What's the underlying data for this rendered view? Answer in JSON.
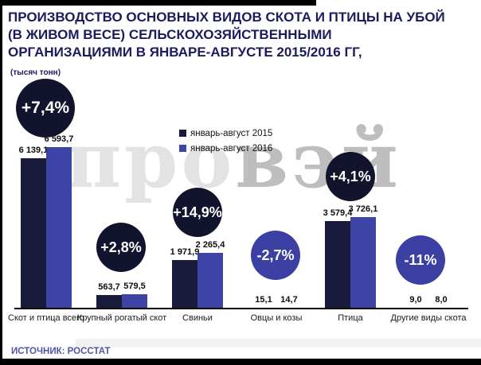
{
  "header": {
    "title_lines": [
      "ПРОИЗВОДСТВО ОСНОВНЫХ ВИДОВ СКОТА И ПТИЦЫ НА УБОЙ",
      "(В ЖИВОМ ВЕСЕ)  СЕЛЬСКОХОЗЯЙСТВЕННЫМИ",
      "ОРГАНИЗАЦИЯМИ В ЯНВАРЕ-АВГУСТЕ 2015/2016 ГГ,"
    ],
    "units_label": "(тысяч тонн)"
  },
  "legend": {
    "items": [
      {
        "label": "январь-август 2015",
        "color": "#191b3c"
      },
      {
        "label": "январь-август 2016",
        "color": "#3e43a6"
      }
    ]
  },
  "watermark": {
    "light_part": "про",
    "dark_part": "вэй"
  },
  "footer": {
    "source": "ИСТОЧНИК: РОССТАТ"
  },
  "colors": {
    "series_2015": "#191b3c",
    "series_2016": "#3e43a6",
    "badge_positive": "#12142e",
    "badge_negative": "#3c40a3",
    "title_text": "#1b1b5e",
    "source_text": "#5153a5",
    "axis": "#000000"
  },
  "chart_data": {
    "type": "bar",
    "title": "ПРОИЗВОДСТВО ОСНОВНЫХ ВИДОВ СКОТА И ПТИЦЫ НА УБОЙ (В ЖИВОМ ВЕСЕ) СЕЛЬСКОХОЗЯЙСТВЕННЫМИ ОРГАНИЗАЦИЯМИ В ЯНВАРЕ-АВГУСТЕ 2015/2016 ГГ",
    "units": "тысяч тонн",
    "categories": [
      "Скот и птица всего",
      "Крупный рогатый скот",
      "Свиньи",
      "Овцы и козы",
      "Птица",
      "Другие виды скота"
    ],
    "series": [
      {
        "name": "январь-август 2015",
        "values": [
          6139.1,
          563.7,
          1971.9,
          15.1,
          3579.4,
          9.0
        ],
        "labels": [
          "6 139,1",
          "563,7",
          "1 971,9",
          "15,1",
          "3 579,4",
          "9,0"
        ]
      },
      {
        "name": "январь-август 2016",
        "values": [
          6593.7,
          579.5,
          2265.4,
          14.7,
          3726.1,
          8.0
        ],
        "labels": [
          "6 593,7",
          "579,5",
          "2 265,4",
          "14,7",
          "3 726,1",
          "8,0"
        ]
      }
    ],
    "change_badges": [
      "+7,4%",
      "+2,8%",
      "+14,9%",
      "-2,7%",
      "+4,1%",
      "-11%"
    ],
    "legend_position": "top-center",
    "grid": false,
    "ylim": [
      0,
      7000
    ]
  }
}
